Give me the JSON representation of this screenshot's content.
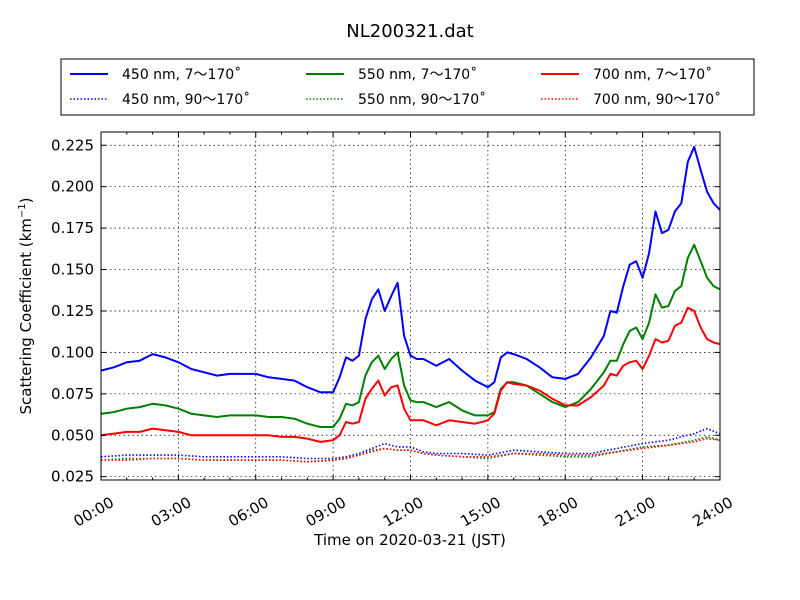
{
  "chart_data": {
    "type": "line",
    "title": "NL200321.dat",
    "xlabel": "Time on 2020-03-21 (JST)",
    "ylabel": "Scattering Coefficient (km",
    "ylabel_sup": "−1",
    "ylabel_end": ")",
    "xlim": [
      0,
      24
    ],
    "ylim": [
      0.023,
      0.233
    ],
    "x_ticks": [
      0,
      3,
      6,
      9,
      12,
      15,
      18,
      21,
      24
    ],
    "x_tick_labels": [
      "00:00",
      "03:00",
      "06:00",
      "09:00",
      "12:00",
      "15:00",
      "18:00",
      "21:00",
      "24:00"
    ],
    "y_ticks": [
      0.025,
      0.05,
      0.075,
      0.1,
      0.125,
      0.15,
      0.175,
      0.2,
      0.225
    ],
    "y_tick_labels": [
      "0.025",
      "0.050",
      "0.075",
      "0.100",
      "0.125",
      "0.150",
      "0.175",
      "0.200",
      "0.225"
    ],
    "grid": true,
    "legend_position": "top, above plot",
    "series": [
      {
        "name": "450 nm, 7～170˚",
        "color": "#0000ff",
        "style": "solid",
        "x": [
          0,
          0.5,
          1,
          1.5,
          2,
          2.5,
          3,
          3.5,
          4,
          4.5,
          5,
          5.5,
          6,
          6.5,
          7,
          7.5,
          8,
          8.5,
          9,
          9.25,
          9.5,
          9.75,
          10,
          10.25,
          10.5,
          10.75,
          11,
          11.25,
          11.5,
          11.75,
          12,
          12.25,
          12.5,
          13,
          13.5,
          14,
          14.5,
          15,
          15.25,
          15.5,
          15.75,
          16,
          16.5,
          17,
          17.5,
          18,
          18.5,
          19,
          19.5,
          19.75,
          20,
          20.25,
          20.5,
          20.75,
          21,
          21.25,
          21.5,
          21.75,
          22,
          22.25,
          22.5,
          22.75,
          23,
          23.25,
          23.5,
          23.75,
          24
        ],
        "y": [
          0.089,
          0.091,
          0.094,
          0.095,
          0.099,
          0.097,
          0.094,
          0.09,
          0.088,
          0.086,
          0.087,
          0.087,
          0.087,
          0.085,
          0.084,
          0.083,
          0.079,
          0.076,
          0.076,
          0.085,
          0.097,
          0.095,
          0.098,
          0.12,
          0.132,
          0.138,
          0.125,
          0.134,
          0.142,
          0.11,
          0.098,
          0.096,
          0.096,
          0.092,
          0.096,
          0.089,
          0.083,
          0.079,
          0.082,
          0.097,
          0.1,
          0.099,
          0.096,
          0.091,
          0.085,
          0.084,
          0.087,
          0.097,
          0.11,
          0.125,
          0.124,
          0.14,
          0.153,
          0.155,
          0.145,
          0.16,
          0.185,
          0.172,
          0.174,
          0.185,
          0.19,
          0.215,
          0.224,
          0.21,
          0.197,
          0.19,
          0.186
        ]
      },
      {
        "name": "450 nm, 90～170˚",
        "color": "#0000ff",
        "style": "dotted",
        "x": [
          0,
          1,
          2,
          3,
          4,
          5,
          6,
          7,
          8,
          9,
          9.5,
          10,
          10.5,
          11,
          11.5,
          12,
          12.5,
          13,
          14,
          15,
          16,
          17,
          18,
          19,
          20,
          21,
          22,
          23,
          23.5,
          24
        ],
        "y": [
          0.037,
          0.038,
          0.038,
          0.038,
          0.037,
          0.037,
          0.037,
          0.037,
          0.036,
          0.036,
          0.037,
          0.039,
          0.042,
          0.045,
          0.043,
          0.043,
          0.04,
          0.039,
          0.039,
          0.038,
          0.041,
          0.04,
          0.039,
          0.039,
          0.042,
          0.045,
          0.047,
          0.051,
          0.054,
          0.051
        ]
      },
      {
        "name": "550 nm, 7～170˚",
        "color": "#008000",
        "style": "solid",
        "x": [
          0,
          0.5,
          1,
          1.5,
          2,
          2.5,
          3,
          3.5,
          4,
          4.5,
          5,
          5.5,
          6,
          6.5,
          7,
          7.5,
          8,
          8.5,
          9,
          9.25,
          9.5,
          9.75,
          10,
          10.25,
          10.5,
          10.75,
          11,
          11.25,
          11.5,
          11.75,
          12,
          12.25,
          12.5,
          13,
          13.5,
          14,
          14.5,
          15,
          15.25,
          15.5,
          15.75,
          16,
          16.5,
          17,
          17.5,
          18,
          18.5,
          19,
          19.5,
          19.75,
          20,
          20.25,
          20.5,
          20.75,
          21,
          21.25,
          21.5,
          21.75,
          22,
          22.25,
          22.5,
          22.75,
          23,
          23.25,
          23.5,
          23.75,
          24
        ],
        "y": [
          0.063,
          0.064,
          0.066,
          0.067,
          0.069,
          0.068,
          0.066,
          0.063,
          0.062,
          0.061,
          0.062,
          0.062,
          0.062,
          0.061,
          0.061,
          0.06,
          0.057,
          0.055,
          0.055,
          0.06,
          0.069,
          0.068,
          0.07,
          0.086,
          0.094,
          0.098,
          0.09,
          0.096,
          0.1,
          0.08,
          0.071,
          0.07,
          0.07,
          0.067,
          0.07,
          0.065,
          0.062,
          0.062,
          0.064,
          0.078,
          0.082,
          0.082,
          0.08,
          0.075,
          0.07,
          0.067,
          0.07,
          0.078,
          0.088,
          0.095,
          0.095,
          0.105,
          0.113,
          0.115,
          0.108,
          0.118,
          0.135,
          0.127,
          0.128,
          0.137,
          0.14,
          0.157,
          0.165,
          0.155,
          0.145,
          0.14,
          0.138
        ]
      },
      {
        "name": "550 nm, 90～170˚",
        "color": "#008000",
        "style": "dotted",
        "x": [
          0,
          1,
          2,
          3,
          4,
          5,
          6,
          7,
          8,
          9,
          9.5,
          10,
          10.5,
          11,
          11.5,
          12,
          12.5,
          13,
          14,
          15,
          16,
          17,
          18,
          19,
          20,
          21,
          22,
          23,
          23.5,
          24
        ],
        "y": [
          0.035,
          0.036,
          0.036,
          0.036,
          0.035,
          0.035,
          0.035,
          0.035,
          0.034,
          0.035,
          0.036,
          0.038,
          0.041,
          0.042,
          0.041,
          0.041,
          0.039,
          0.038,
          0.037,
          0.036,
          0.039,
          0.038,
          0.037,
          0.037,
          0.04,
          0.043,
          0.044,
          0.047,
          0.049,
          0.047
        ]
      },
      {
        "name": "700 nm, 7～170˚",
        "color": "#ff0000",
        "style": "solid",
        "x": [
          0,
          0.5,
          1,
          1.5,
          2,
          2.5,
          3,
          3.5,
          4,
          4.5,
          5,
          5.5,
          6,
          6.5,
          7,
          7.5,
          8,
          8.5,
          9,
          9.25,
          9.5,
          9.75,
          10,
          10.25,
          10.5,
          10.75,
          11,
          11.25,
          11.5,
          11.75,
          12,
          12.25,
          12.5,
          13,
          13.5,
          14,
          14.5,
          15,
          15.25,
          15.5,
          15.75,
          16,
          16.5,
          17,
          17.5,
          18,
          18.5,
          19,
          19.5,
          19.75,
          20,
          20.25,
          20.5,
          20.75,
          21,
          21.25,
          21.5,
          21.75,
          22,
          22.25,
          22.5,
          22.75,
          23,
          23.25,
          23.5,
          23.75,
          24
        ],
        "y": [
          0.05,
          0.051,
          0.052,
          0.052,
          0.054,
          0.053,
          0.052,
          0.05,
          0.05,
          0.05,
          0.05,
          0.05,
          0.05,
          0.05,
          0.049,
          0.049,
          0.048,
          0.046,
          0.047,
          0.05,
          0.058,
          0.057,
          0.058,
          0.072,
          0.078,
          0.083,
          0.074,
          0.079,
          0.08,
          0.066,
          0.059,
          0.059,
          0.059,
          0.056,
          0.059,
          0.058,
          0.057,
          0.059,
          0.063,
          0.077,
          0.082,
          0.081,
          0.08,
          0.077,
          0.072,
          0.068,
          0.068,
          0.073,
          0.08,
          0.087,
          0.086,
          0.092,
          0.094,
          0.095,
          0.09,
          0.098,
          0.108,
          0.106,
          0.107,
          0.116,
          0.118,
          0.127,
          0.125,
          0.115,
          0.108,
          0.106,
          0.105
        ]
      },
      {
        "name": "700 nm, 90～170˚",
        "color": "#ff0000",
        "style": "dotted",
        "x": [
          0,
          1,
          2,
          3,
          4,
          5,
          6,
          7,
          8,
          9,
          9.5,
          10,
          10.5,
          11,
          11.5,
          12,
          12.5,
          13,
          14,
          15,
          16,
          17,
          18,
          19,
          20,
          21,
          22,
          23,
          23.5,
          24
        ],
        "y": [
          0.035,
          0.035,
          0.036,
          0.036,
          0.035,
          0.035,
          0.035,
          0.035,
          0.034,
          0.035,
          0.036,
          0.038,
          0.04,
          0.042,
          0.041,
          0.041,
          0.039,
          0.038,
          0.037,
          0.037,
          0.039,
          0.039,
          0.038,
          0.038,
          0.04,
          0.042,
          0.044,
          0.046,
          0.048,
          0.047
        ]
      }
    ]
  }
}
